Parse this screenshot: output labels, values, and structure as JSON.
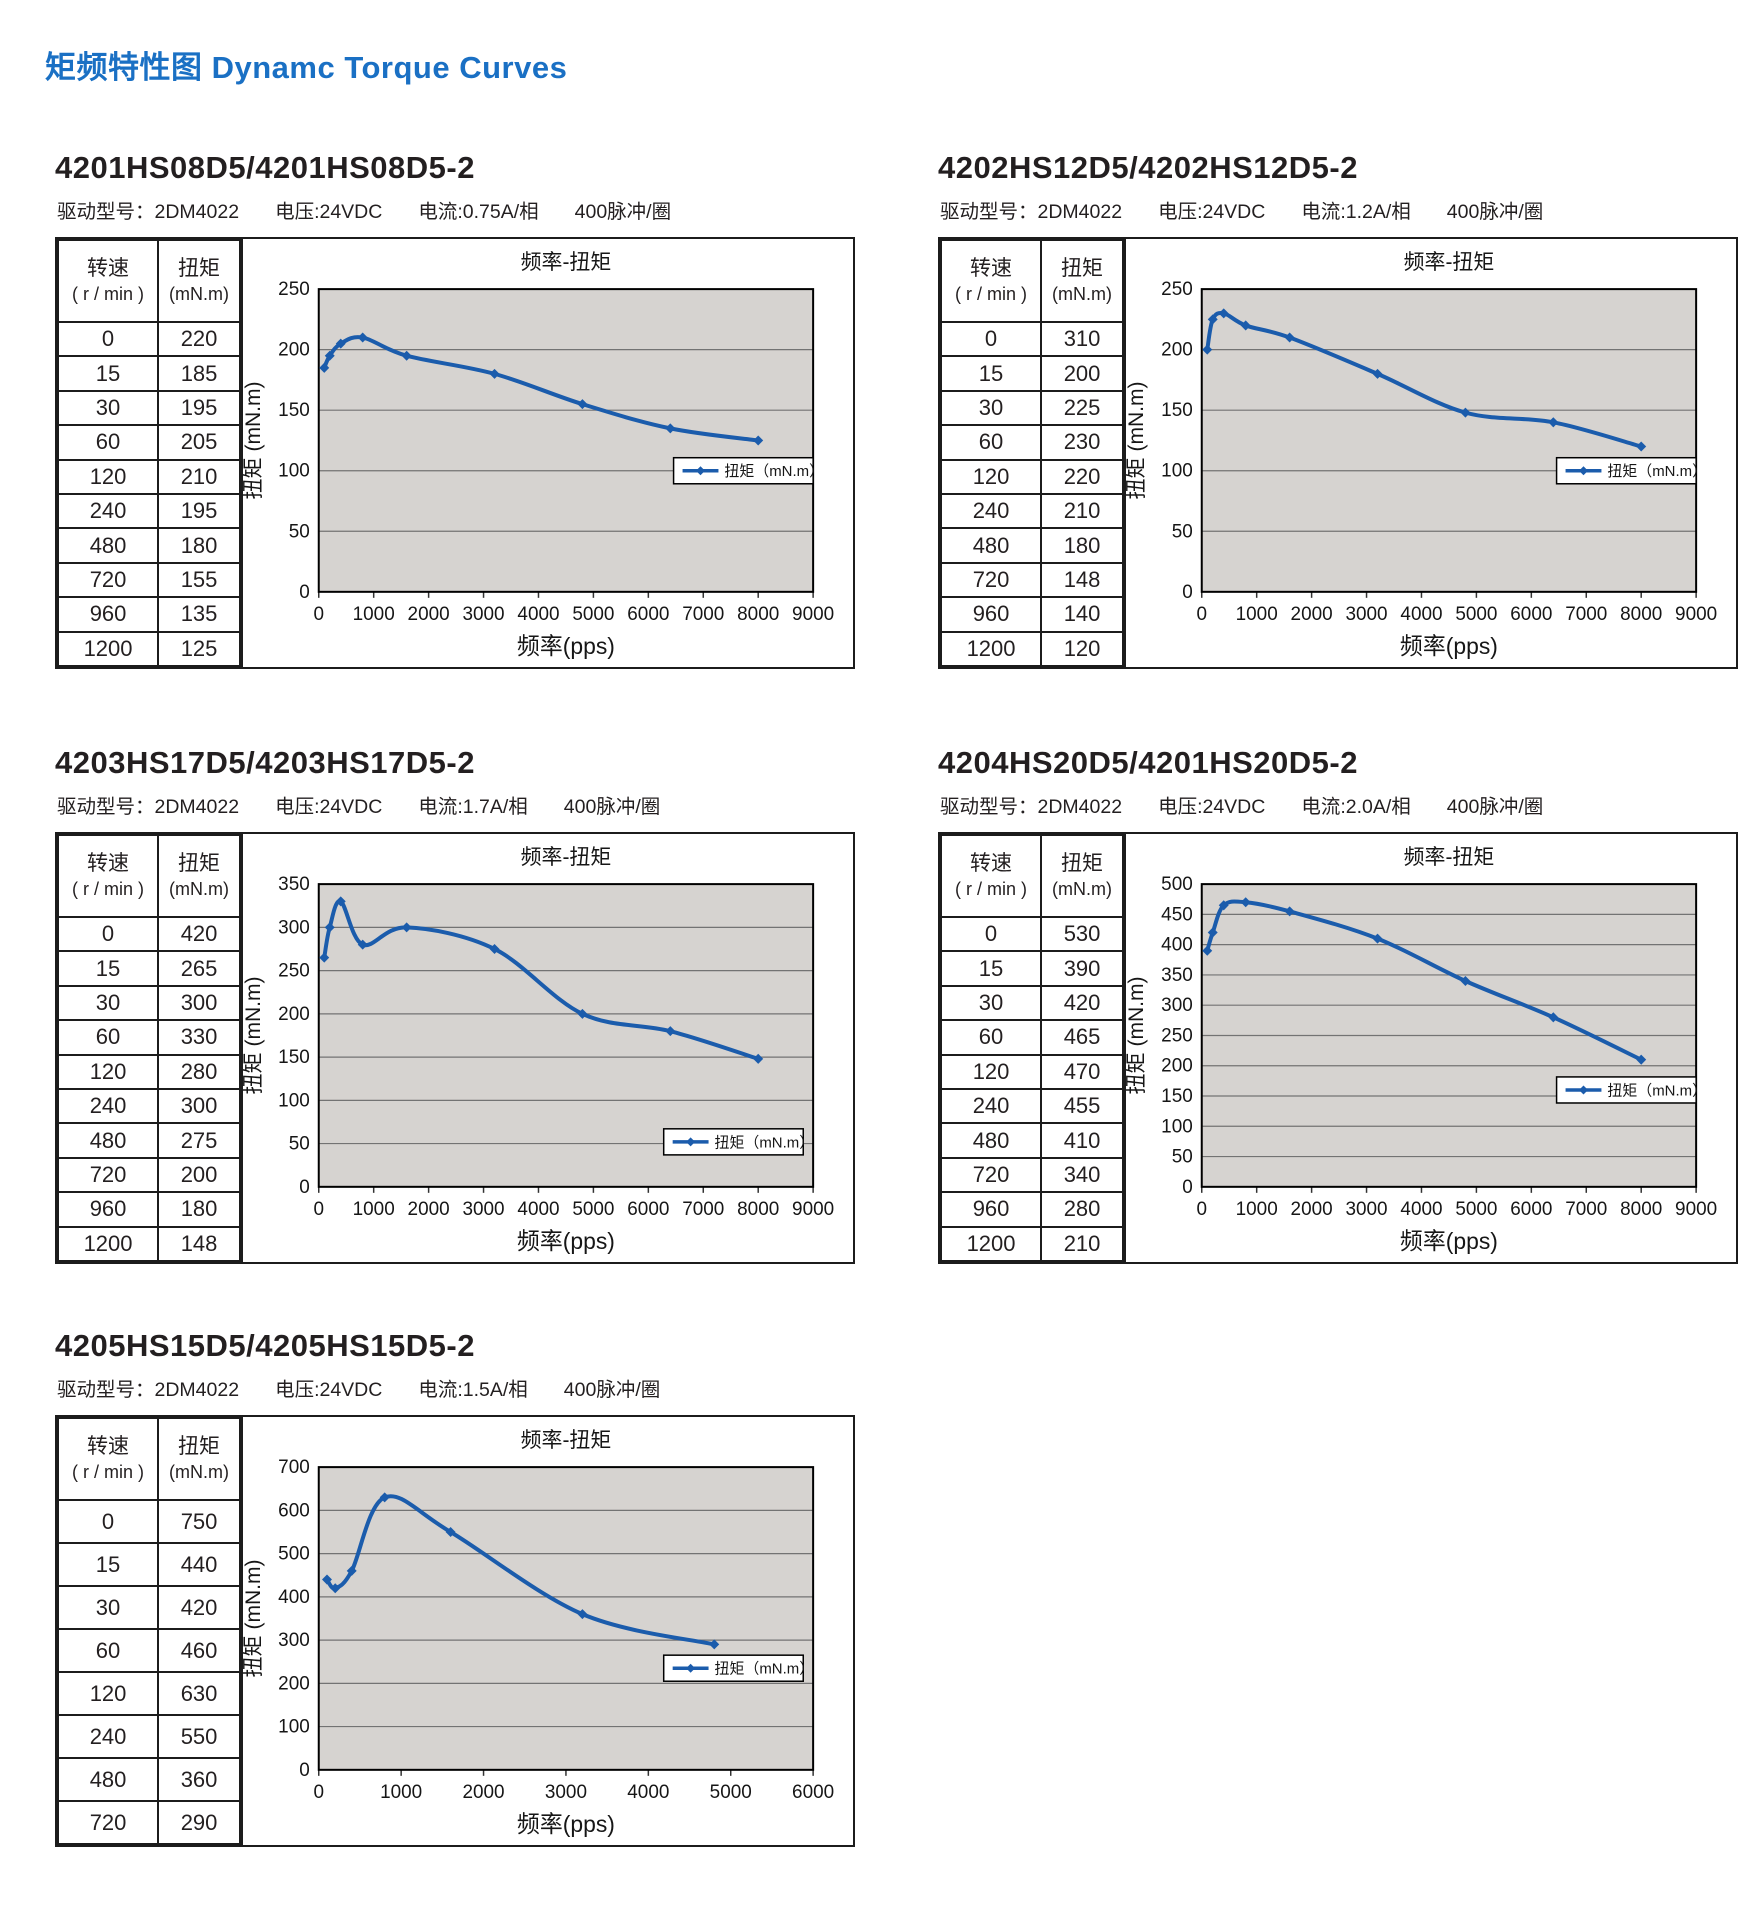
{
  "page": {
    "title": "矩频特性图 Dynamc Torque Curves"
  },
  "colors": {
    "accent": "#1a70c4",
    "curve": "#1b5cac",
    "plot_bg": "#d6d3d0",
    "grid": "#737373",
    "text": "#231f20"
  },
  "table_header": {
    "speed": "转速",
    "speed_unit": "( r / min )",
    "torque": "扭矩",
    "torque_unit": "(mN.m)"
  },
  "sections": [
    {
      "title": "4201HS08D5/4201HS08D5-2",
      "subtitle": [
        "驱动型号：2DM4022",
        "电压:24VDC",
        "电流:0.75A/相",
        "400脉冲/圈"
      ],
      "table_rows": [
        [
          "0",
          "220"
        ],
        [
          "15",
          "185"
        ],
        [
          "30",
          "195"
        ],
        [
          "60",
          "205"
        ],
        [
          "120",
          "210"
        ],
        [
          "240",
          "195"
        ],
        [
          "480",
          "180"
        ],
        [
          "720",
          "155"
        ],
        [
          "960",
          "135"
        ],
        [
          "1200",
          "125"
        ]
      ]
    },
    {
      "title": "4202HS12D5/4202HS12D5-2",
      "subtitle": [
        "驱动型号：2DM4022",
        "电压:24VDC",
        "电流:1.2A/相",
        "400脉冲/圈"
      ],
      "table_rows": [
        [
          "0",
          "310"
        ],
        [
          "15",
          "200"
        ],
        [
          "30",
          "225"
        ],
        [
          "60",
          "230"
        ],
        [
          "120",
          "220"
        ],
        [
          "240",
          "210"
        ],
        [
          "480",
          "180"
        ],
        [
          "720",
          "148"
        ],
        [
          "960",
          "140"
        ],
        [
          "1200",
          "120"
        ]
      ]
    },
    {
      "title": "4203HS17D5/4203HS17D5-2",
      "subtitle": [
        "驱动型号：2DM4022",
        "电压:24VDC",
        "电流:1.7A/相",
        "400脉冲/圈"
      ],
      "table_rows": [
        [
          "0",
          "420"
        ],
        [
          "15",
          "265"
        ],
        [
          "30",
          "300"
        ],
        [
          "60",
          "330"
        ],
        [
          "120",
          "280"
        ],
        [
          "240",
          "300"
        ],
        [
          "480",
          "275"
        ],
        [
          "720",
          "200"
        ],
        [
          "960",
          "180"
        ],
        [
          "1200",
          "148"
        ]
      ]
    },
    {
      "title": "4204HS20D5/4201HS20D5-2",
      "subtitle": [
        "驱动型号：2DM4022",
        "电压:24VDC",
        "电流:2.0A/相",
        "400脉冲/圈"
      ],
      "table_rows": [
        [
          "0",
          "530"
        ],
        [
          "15",
          "390"
        ],
        [
          "30",
          "420"
        ],
        [
          "60",
          "465"
        ],
        [
          "120",
          "470"
        ],
        [
          "240",
          "455"
        ],
        [
          "480",
          "410"
        ],
        [
          "720",
          "340"
        ],
        [
          "960",
          "280"
        ],
        [
          "1200",
          "210"
        ]
      ]
    },
    {
      "title": "4205HS15D5/4205HS15D5-2",
      "subtitle": [
        "驱动型号：2DM4022",
        "电压:24VDC",
        "电流:1.5A/相",
        "400脉冲/圈"
      ],
      "table_rows": [
        [
          "0",
          "750"
        ],
        [
          "15",
          "440"
        ],
        [
          "30",
          "420"
        ],
        [
          "60",
          "460"
        ],
        [
          "120",
          "630"
        ],
        [
          "240",
          "550"
        ],
        [
          "480",
          "360"
        ],
        [
          "720",
          "290"
        ]
      ]
    }
  ],
  "chart_data": [
    {
      "type": "line",
      "title": "频率-扭矩",
      "xlabel": "频率(pps)",
      "ylabel": "扭矩 (mN.m)",
      "legend": "扭矩（mN.m）",
      "xlim": [
        0,
        9000
      ],
      "xstep": 1000,
      "ylim": [
        0,
        250
      ],
      "ystep": 50,
      "x": [
        100,
        200,
        400,
        800,
        1600,
        3200,
        4800,
        6400,
        8000
      ],
      "y": [
        185,
        195,
        205,
        210,
        195,
        180,
        155,
        135,
        125
      ],
      "legend_pos": {
        "right_frac": 1.0,
        "y_value": 100
      }
    },
    {
      "type": "line",
      "title": "频率-扭矩",
      "xlabel": "频率(pps)",
      "ylabel": "扭矩 (mN.m)",
      "legend": "扭矩（mN.m）",
      "xlim": [
        0,
        9000
      ],
      "xstep": 1000,
      "ylim": [
        0,
        250
      ],
      "ystep": 50,
      "x": [
        100,
        200,
        400,
        800,
        1600,
        3200,
        4800,
        6400,
        8000
      ],
      "y": [
        200,
        225,
        230,
        220,
        210,
        180,
        148,
        140,
        120
      ],
      "legend_pos": {
        "right_frac": 1.0,
        "y_value": 100
      }
    },
    {
      "type": "line",
      "title": "频率-扭矩",
      "xlabel": "频率(pps)",
      "ylabel": "扭矩 (mN.m)",
      "legend": "扭矩（mN.m）",
      "xlim": [
        0,
        9000
      ],
      "xstep": 1000,
      "ylim": [
        0,
        350
      ],
      "ystep": 50,
      "x": [
        100,
        200,
        400,
        800,
        1600,
        3200,
        4800,
        6400,
        8000
      ],
      "y": [
        265,
        300,
        330,
        280,
        300,
        275,
        200,
        180,
        148
      ],
      "legend_pos": {
        "right_frac": 0.98,
        "y_value": 52
      }
    },
    {
      "type": "line",
      "title": "频率-扭矩",
      "xlabel": "频率(pps)",
      "ylabel": "扭矩 (mN.m)",
      "legend": "扭矩（mN.m）",
      "xlim": [
        0,
        9000
      ],
      "xstep": 1000,
      "ylim": [
        0,
        500
      ],
      "ystep": 50,
      "x": [
        100,
        200,
        400,
        800,
        1600,
        3200,
        4800,
        6400,
        8000
      ],
      "y": [
        390,
        420,
        465,
        470,
        455,
        410,
        340,
        280,
        210
      ],
      "legend_pos": {
        "right_frac": 1.0,
        "y_value": 160
      }
    },
    {
      "type": "line",
      "title": "频率-扭矩",
      "xlabel": "频率(pps)",
      "ylabel": "扭矩 (mN.m)",
      "legend": "扭矩（mN.m）",
      "xlim": [
        0,
        6000
      ],
      "xstep": 1000,
      "ylim": [
        0,
        700
      ],
      "ystep": 100,
      "x": [
        100,
        200,
        400,
        800,
        1600,
        3200,
        4800
      ],
      "y": [
        440,
        420,
        460,
        630,
        550,
        360,
        290
      ],
      "legend_pos": {
        "right_frac": 0.98,
        "y_value": 235
      }
    }
  ]
}
